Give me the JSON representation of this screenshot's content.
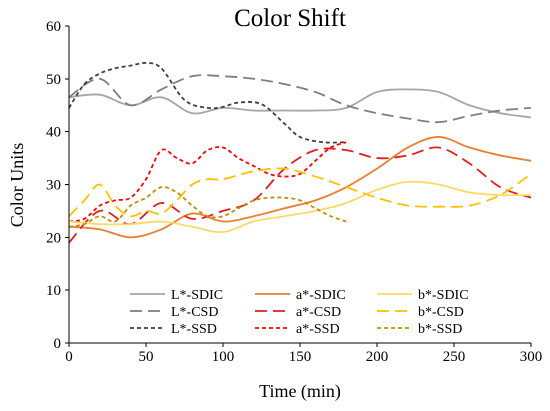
{
  "chart_data": {
    "type": "line",
    "title": "Color Shift",
    "xlabel": "Time (min)",
    "ylabel": "Color Units",
    "xlim": [
      0,
      300
    ],
    "ylim": [
      0,
      60
    ],
    "xticks": [
      0,
      50,
      100,
      150,
      200,
      250,
      300
    ],
    "yticks": [
      0,
      10,
      20,
      30,
      40,
      50,
      60
    ],
    "grid": false,
    "legend": {
      "position": "bottom-center",
      "columns": 3
    },
    "series": [
      {
        "name": "L*-SDIC",
        "color": "#a6a6a6",
        "dash": "solid",
        "x": [
          0,
          20,
          40,
          60,
          80,
          100,
          120,
          140,
          160,
          180,
          200,
          220,
          240,
          260,
          280,
          300
        ],
        "y": [
          46.5,
          47,
          45,
          46.5,
          43.5,
          44.5,
          44,
          44,
          44,
          44.5,
          47.5,
          48,
          47.5,
          45,
          43.5,
          42.7
        ]
      },
      {
        "name": "L*-CSD",
        "color": "#7f7f7f",
        "dash": "long-dash",
        "x": [
          0,
          20,
          40,
          60,
          80,
          100,
          120,
          140,
          160,
          180,
          200,
          220,
          240,
          260,
          280,
          300
        ],
        "y": [
          46.5,
          50,
          45,
          48,
          50.5,
          50.5,
          50,
          49,
          47.5,
          45,
          43.5,
          42.5,
          41.8,
          43,
          44,
          44.5
        ]
      },
      {
        "name": "L*-SSD",
        "color": "#404040",
        "dash": "short-dash",
        "x": [
          0,
          10,
          20,
          30,
          40,
          50,
          60,
          75,
          90,
          100,
          110,
          125,
          140,
          150,
          165,
          180
        ],
        "y": [
          44.5,
          49,
          51,
          52,
          52.5,
          53,
          52,
          46,
          44.5,
          44.7,
          45.5,
          45.2,
          41.5,
          39,
          38,
          38
        ]
      },
      {
        "name": "a*-SDIC",
        "color": "#ed7d31",
        "dash": "solid",
        "x": [
          0,
          20,
          40,
          60,
          80,
          100,
          120,
          140,
          160,
          180,
          200,
          220,
          240,
          260,
          280,
          300
        ],
        "y": [
          22,
          21.5,
          20,
          21.5,
          24.5,
          23,
          24,
          25.5,
          27,
          29.5,
          33,
          37,
          39,
          37,
          35.5,
          34.5
        ]
      },
      {
        "name": "a*-CSD",
        "color": "#e02020",
        "dash": "long-dash",
        "x": [
          0,
          20,
          40,
          60,
          80,
          100,
          120,
          140,
          160,
          180,
          200,
          220,
          240,
          260,
          280,
          300
        ],
        "y": [
          19,
          25,
          22.5,
          26.5,
          23.5,
          25,
          27,
          33,
          36.5,
          36.5,
          35,
          35.5,
          37,
          34,
          29.5,
          27.5
        ]
      },
      {
        "name": "a*-SSD",
        "color": "#ff0000",
        "dash": "short-dash",
        "x": [
          0,
          10,
          20,
          30,
          40,
          50,
          60,
          70,
          80,
          90,
          100,
          110,
          120,
          130,
          140,
          150,
          160,
          170,
          180
        ],
        "y": [
          23,
          23.5,
          26,
          27,
          27.5,
          31,
          36.5,
          35,
          34,
          36.5,
          37,
          35,
          33.5,
          32,
          31.5,
          32,
          34.5,
          37,
          38
        ]
      },
      {
        "name": "b*-SDIC",
        "color": "#ffd966",
        "dash": "solid",
        "x": [
          0,
          20,
          40,
          60,
          80,
          100,
          120,
          140,
          160,
          180,
          200,
          220,
          240,
          260,
          280,
          300
        ],
        "y": [
          23,
          22.5,
          22.5,
          23,
          22,
          21,
          23,
          24,
          25,
          26.5,
          29,
          30.5,
          30,
          28.5,
          28,
          28
        ]
      },
      {
        "name": "b*-CSD",
        "color": "#ffc000",
        "dash": "long-dash",
        "x": [
          0,
          10,
          20,
          30,
          40,
          50,
          60,
          70,
          80,
          90,
          100,
          120,
          140,
          160,
          180,
          200,
          220,
          240,
          260,
          280,
          300
        ],
        "y": [
          24,
          27,
          30,
          26,
          24,
          25,
          24.5,
          27,
          30,
          31,
          31,
          32.5,
          33,
          31.5,
          29.5,
          27.5,
          26,
          25.8,
          26,
          28,
          32
        ]
      },
      {
        "name": "b*-SSD",
        "color": "#bf9000",
        "dash": "short-dash",
        "x": [
          0,
          10,
          20,
          30,
          40,
          50,
          60,
          70,
          80,
          90,
          100,
          110,
          120,
          130,
          140,
          150,
          160,
          170,
          180
        ],
        "y": [
          22,
          22.5,
          24,
          23,
          26,
          27.5,
          29.5,
          28.5,
          26,
          24,
          24,
          25.5,
          27,
          27.5,
          27.5,
          27,
          25.5,
          24,
          23
        ]
      }
    ]
  }
}
